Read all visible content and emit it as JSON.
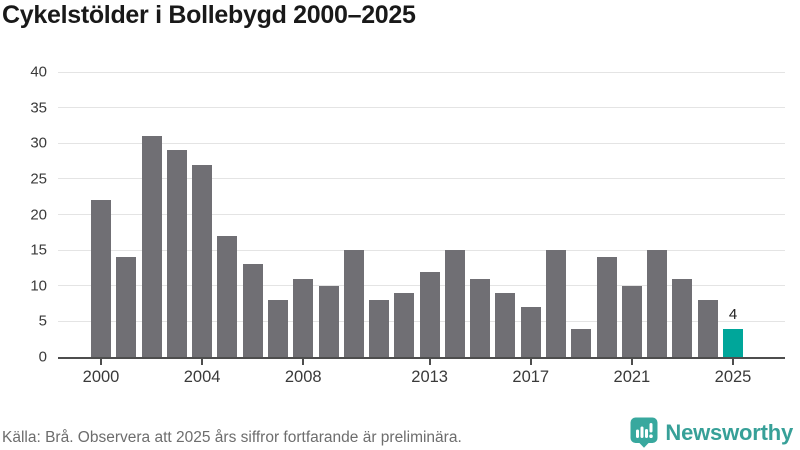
{
  "title": "Cykelstölder i Bollebygd 2000–2025",
  "source_note": "Källa: Brå. Observera att 2025 års siffror fortfarande är preliminära.",
  "logo": {
    "text": "Newsworthy",
    "icon": "newsworthy-speech-bubble-bar-chart-icon"
  },
  "colors": {
    "bar": "#706f74",
    "bar_highlight": "#00a69a",
    "grid": "#e4e4e4",
    "axis": "#4d4d4d",
    "title": "#191919",
    "tick_label": "#3a3a3a",
    "annotation": "#222222",
    "source": "#6d6d6d",
    "logo_icon": "#38a89e",
    "logo_text": "#37a098"
  },
  "chart_data": {
    "type": "bar",
    "title": "Cykelstölder i Bollebygd 2000–2025",
    "x": [
      2000,
      2001,
      2002,
      2003,
      2004,
      2005,
      2006,
      2007,
      2008,
      2009,
      2010,
      2011,
      2012,
      2013,
      2014,
      2015,
      2016,
      2017,
      2018,
      2019,
      2020,
      2021,
      2022,
      2023,
      2024,
      2025
    ],
    "values": [
      22,
      14,
      31,
      29,
      27,
      17,
      13,
      8,
      11,
      10,
      15,
      8,
      9,
      12,
      15,
      11,
      9,
      7,
      15,
      4,
      14,
      10,
      15,
      11,
      8,
      4
    ],
    "highlight": {
      "year": 2025,
      "label": "4"
    },
    "xlabel": "",
    "ylabel": "",
    "ylim": [
      0,
      40
    ],
    "y_ticks": [
      0,
      5,
      10,
      15,
      20,
      25,
      30,
      35,
      40
    ],
    "x_ticks": [
      2000,
      2004,
      2008,
      2013,
      2017,
      2021,
      2025
    ],
    "grid": true,
    "legend_position": "none"
  }
}
